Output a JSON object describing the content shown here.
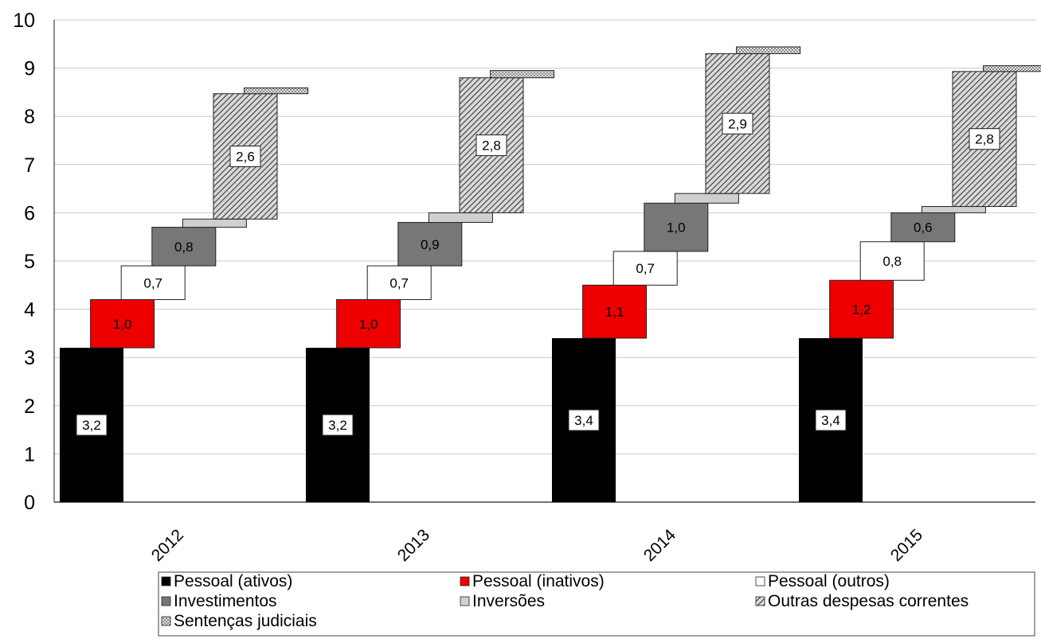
{
  "chart_data": {
    "type": "bar",
    "subtype": "stacked-waterfall",
    "categories": [
      "2012",
      "2013",
      "2014",
      "2015"
    ],
    "ylim": [
      0,
      10
    ],
    "yticks": [
      "0",
      "1",
      "2",
      "3",
      "4",
      "5",
      "6",
      "7",
      "8",
      "9",
      "10"
    ],
    "grid": true,
    "legend_position": "bottom",
    "series": [
      {
        "name": "Pessoal (ativos)",
        "values": [
          3.2,
          3.2,
          3.4,
          3.4
        ],
        "labels": [
          "3,2",
          "3,2",
          "3,4",
          "3,4"
        ],
        "color": "#000000",
        "pattern": "solid"
      },
      {
        "name": "Pessoal (inativos)",
        "values": [
          1.0,
          1.0,
          1.1,
          1.2
        ],
        "labels": [
          "1,0",
          "1,0",
          "1,1",
          "1,2"
        ],
        "color": "#ee0000",
        "pattern": "solid"
      },
      {
        "name": "Pessoal (outros)",
        "values": [
          0.7,
          0.7,
          0.7,
          0.8
        ],
        "labels": [
          "0,7",
          "0,7",
          "0,7",
          "0,8"
        ],
        "color": "#ffffff",
        "pattern": "solid"
      },
      {
        "name": "Investimentos",
        "values": [
          0.8,
          0.9,
          1.0,
          0.6
        ],
        "labels": [
          "0,8",
          "0,9",
          "1,0",
          "0,6"
        ],
        "color": "#777777",
        "pattern": "solid"
      },
      {
        "name": "Inversões",
        "values": [
          0.17,
          0.2,
          0.2,
          0.13
        ],
        "labels": [
          "",
          "",
          "",
          ""
        ],
        "color": "#cfcfcf",
        "pattern": "solid"
      },
      {
        "name": "Outras despesas correntes",
        "values": [
          2.6,
          2.8,
          2.9,
          2.8
        ],
        "labels": [
          "2,6",
          "2,8",
          "2,9",
          "2,8"
        ],
        "color": "#8a8a8a",
        "pattern": "hatch"
      },
      {
        "name": "Sentenças judiciais",
        "values": [
          0.12,
          0.15,
          0.14,
          0.12
        ],
        "labels": [
          "",
          "",
          "",
          ""
        ],
        "color": "#bdbdbd",
        "pattern": "dots"
      }
    ]
  }
}
